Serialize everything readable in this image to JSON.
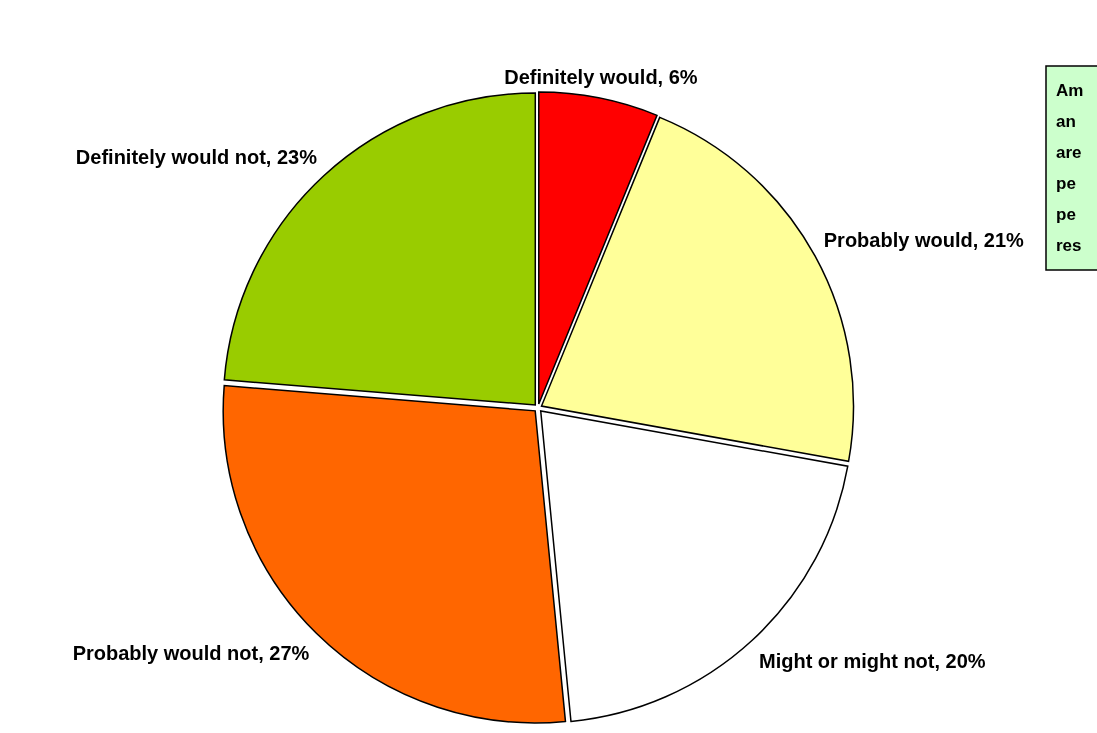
{
  "chart_data": {
    "type": "pie",
    "categories": [
      "Definitely would",
      "Probably would",
      "Might or might not",
      "Probably would not",
      "Definitely would not"
    ],
    "values": [
      6,
      21,
      20,
      27,
      23
    ],
    "colors": [
      "#ff0000",
      "#ffff99",
      "#ffffff",
      "#ff6600",
      "#99cc00"
    ],
    "value_labels": [
      "6%",
      "21%",
      "20%",
      "27%",
      "23%"
    ],
    "annotations": [
      "Am\nan\nare\npe\npe\nres"
    ]
  }
}
